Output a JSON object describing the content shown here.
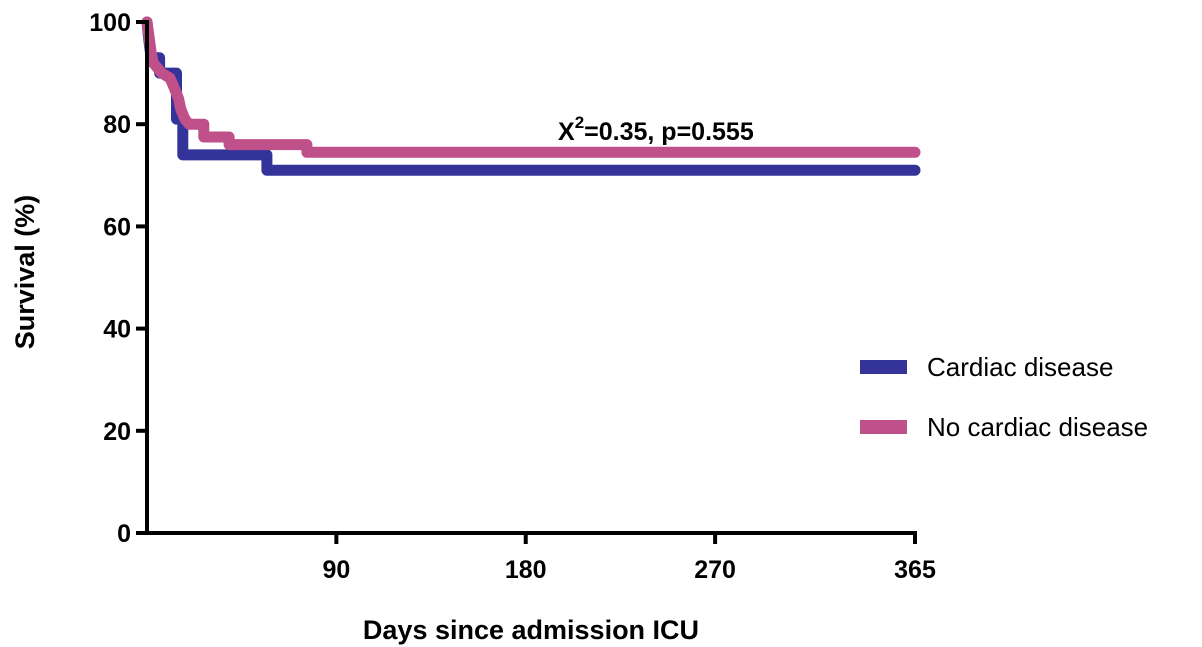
{
  "chart_data": {
    "type": "line",
    "title": "",
    "xlabel": "Days since admission ICU",
    "ylabel": "Survival (%)",
    "xlim": [
      0,
      365
    ],
    "ylim": [
      0,
      100
    ],
    "x_ticks": [
      90,
      180,
      270,
      365
    ],
    "y_ticks": [
      0,
      20,
      40,
      60,
      80,
      100
    ],
    "grid": false,
    "legend_position": "right",
    "annotation": {
      "main": "X",
      "superscript": "2",
      "rest": "=0.35, p=0.555"
    },
    "series": [
      {
        "name": "Cardiac disease",
        "color": "#333399",
        "step": true,
        "points": [
          [
            0,
            100
          ],
          [
            1,
            96
          ],
          [
            2,
            93
          ],
          [
            6,
            93
          ],
          [
            6,
            90
          ],
          [
            14,
            90
          ],
          [
            14,
            81
          ],
          [
            17,
            81
          ],
          [
            17,
            74
          ],
          [
            57,
            74
          ],
          [
            57,
            71
          ],
          [
            365,
            71
          ]
        ]
      },
      {
        "name": "No cardiac disease",
        "color": "#c0508a",
        "step": true,
        "points": [
          [
            0,
            100
          ],
          [
            1,
            97
          ],
          [
            2,
            94
          ],
          [
            3,
            92
          ],
          [
            5,
            91
          ],
          [
            7,
            90
          ],
          [
            11,
            89
          ],
          [
            13,
            87
          ],
          [
            15,
            85
          ],
          [
            16,
            83
          ],
          [
            18,
            81
          ],
          [
            20,
            80
          ],
          [
            27,
            80
          ],
          [
            27,
            77.5
          ],
          [
            39,
            77.5
          ],
          [
            39,
            76
          ],
          [
            76,
            76
          ],
          [
            76,
            74.5
          ],
          [
            365,
            74.5
          ]
        ]
      }
    ]
  }
}
